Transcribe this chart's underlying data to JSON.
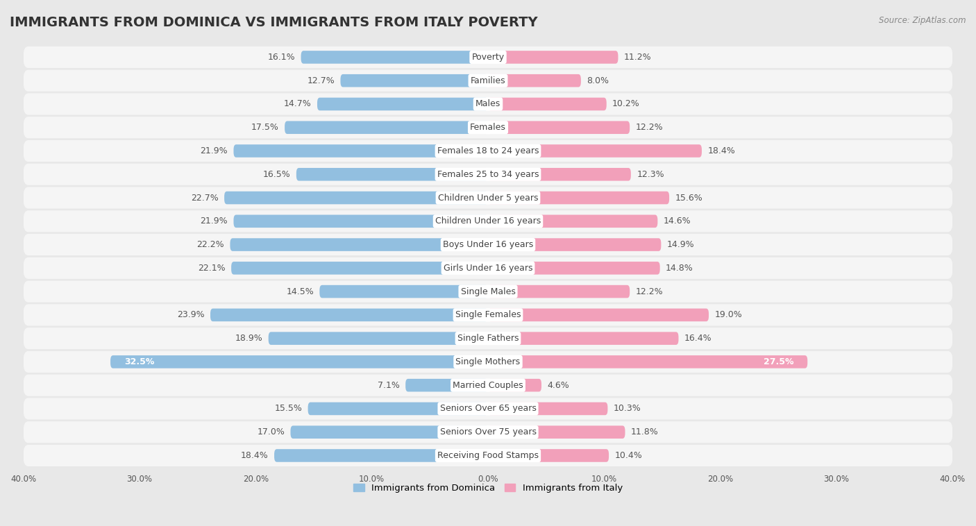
{
  "title": "IMMIGRANTS FROM DOMINICA VS IMMIGRANTS FROM ITALY POVERTY",
  "source": "Source: ZipAtlas.com",
  "categories": [
    "Poverty",
    "Families",
    "Males",
    "Females",
    "Females 18 to 24 years",
    "Females 25 to 34 years",
    "Children Under 5 years",
    "Children Under 16 years",
    "Boys Under 16 years",
    "Girls Under 16 years",
    "Single Males",
    "Single Females",
    "Single Fathers",
    "Single Mothers",
    "Married Couples",
    "Seniors Over 65 years",
    "Seniors Over 75 years",
    "Receiving Food Stamps"
  ],
  "dominica_values": [
    16.1,
    12.7,
    14.7,
    17.5,
    21.9,
    16.5,
    22.7,
    21.9,
    22.2,
    22.1,
    14.5,
    23.9,
    18.9,
    32.5,
    7.1,
    15.5,
    17.0,
    18.4
  ],
  "italy_values": [
    11.2,
    8.0,
    10.2,
    12.2,
    18.4,
    12.3,
    15.6,
    14.6,
    14.9,
    14.8,
    12.2,
    19.0,
    16.4,
    27.5,
    4.6,
    10.3,
    11.8,
    10.4
  ],
  "dominica_color": "#92BFE0",
  "italy_color": "#F2A0BA",
  "dominica_label": "Immigrants from Dominica",
  "italy_label": "Immigrants from Italy",
  "xlim": 40.0,
  "bg_color": "#e8e8e8",
  "row_color": "#f5f5f5",
  "bar_bg_color": "#ffffff",
  "title_fontsize": 14,
  "label_fontsize": 9,
  "value_fontsize": 9
}
